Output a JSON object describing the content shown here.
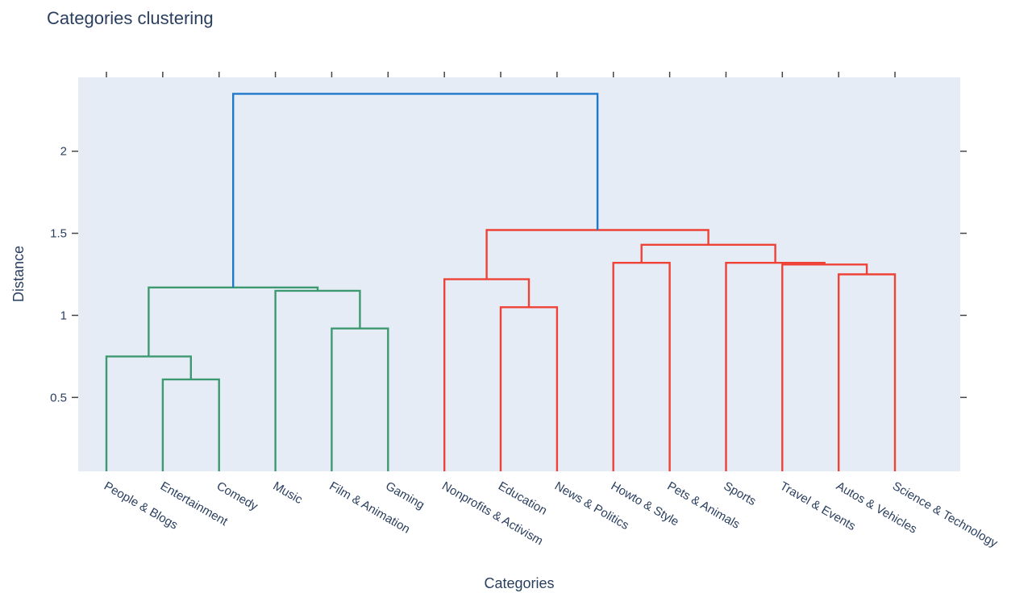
{
  "chart_data": {
    "type": "dendrogram",
    "title": "Categories clustering",
    "xlabel": "Categories",
    "ylabel": "Distance",
    "ylim": [
      0.05,
      2.45
    ],
    "yticks": [
      0.5,
      1,
      1.5,
      2
    ],
    "ytick_labels": [
      "0.5",
      "1",
      "1.5",
      "2"
    ],
    "grid": false,
    "leaves": [
      "People & Blogs",
      "Entertainment",
      "Comedy",
      "Music",
      "Film & Animation",
      "Gaming",
      "Nonprofits & Activism",
      "Education",
      "News & Politics",
      "Howto & Style",
      "Pets & Animals",
      "Sports",
      "Travel & Events",
      "Autos & Vehicles",
      "Science & Technology"
    ],
    "colors": {
      "cluster_green": "#3d9970",
      "cluster_red": "#ef4136",
      "root_blue": "#1f78c9",
      "plot_bg": "#e5ecf6"
    },
    "links": [
      {
        "x": [
          1,
          1,
          2,
          2
        ],
        "y": [
          0,
          0.61,
          0.61,
          0
        ],
        "color": "cluster_green"
      },
      {
        "x": [
          0,
          0,
          1.5,
          1.5
        ],
        "y": [
          0,
          0.75,
          0.75,
          0.61
        ],
        "color": "cluster_green"
      },
      {
        "x": [
          4,
          4,
          5,
          5
        ],
        "y": [
          0,
          0.92,
          0.92,
          0
        ],
        "color": "cluster_green"
      },
      {
        "x": [
          3,
          3,
          4.5,
          4.5
        ],
        "y": [
          0,
          1.15,
          1.15,
          0.92
        ],
        "color": "cluster_green"
      },
      {
        "x": [
          0.75,
          0.75,
          3.75,
          3.75
        ],
        "y": [
          0.75,
          1.17,
          1.17,
          1.15
        ],
        "color": "cluster_green"
      },
      {
        "x": [
          7,
          7,
          8,
          8
        ],
        "y": [
          0,
          1.05,
          1.05,
          0
        ],
        "color": "cluster_red"
      },
      {
        "x": [
          6,
          6,
          7.5,
          7.5
        ],
        "y": [
          0,
          1.22,
          1.22,
          1.05
        ],
        "color": "cluster_red"
      },
      {
        "x": [
          9,
          9,
          10,
          10
        ],
        "y": [
          0,
          1.32,
          1.32,
          0
        ],
        "color": "cluster_red"
      },
      {
        "x": [
          13,
          13,
          14,
          14
        ],
        "y": [
          0,
          1.25,
          1.25,
          0
        ],
        "color": "cluster_red"
      },
      {
        "x": [
          12,
          12,
          13.5,
          13.5
        ],
        "y": [
          0,
          1.31,
          1.31,
          1.25
        ],
        "color": "cluster_red"
      },
      {
        "x": [
          11,
          11,
          12.75,
          12.75
        ],
        "y": [
          0,
          1.32,
          1.32,
          1.31
        ],
        "color": "cluster_red"
      },
      {
        "x": [
          9.5,
          9.5,
          11.875,
          11.875
        ],
        "y": [
          1.32,
          1.43,
          1.43,
          1.32
        ],
        "color": "cluster_red"
      },
      {
        "x": [
          6.75,
          6.75,
          10.6875,
          10.6875
        ],
        "y": [
          1.22,
          1.52,
          1.52,
          1.43
        ],
        "color": "cluster_red"
      },
      {
        "x": [
          2.25,
          2.25,
          8.71875,
          8.71875
        ],
        "y": [
          1.17,
          2.35,
          2.35,
          1.52
        ],
        "color": "root_blue"
      }
    ]
  }
}
